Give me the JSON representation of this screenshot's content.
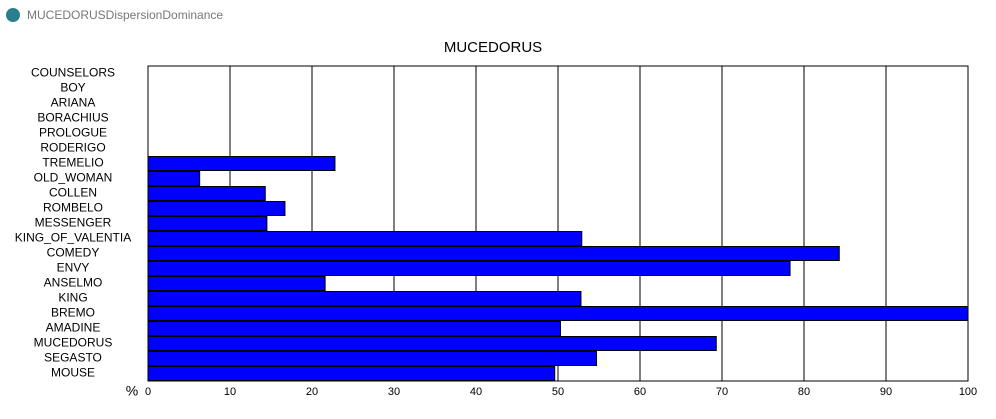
{
  "window": {
    "title": "MUCEDORUSDispersionDominance"
  },
  "chart_data": {
    "type": "barh",
    "title": "MUCEDORUS",
    "xlabel": "%",
    "categories": [
      "COUNSELORS",
      "BOY",
      "ARIANA",
      "BORACHIUS",
      "PROLOGUE",
      "RODERIGO",
      "TREMELIO",
      "OLD_WOMAN",
      "COLLEN",
      "ROMBELO",
      "MESSENGER",
      "KING_OF_VALENTIA",
      "COMEDY",
      "ENVY",
      "ANSELMO",
      "KING",
      "BREMO",
      "AMADINE",
      "MUCEDORUS",
      "SEGASTO",
      "MOUSE"
    ],
    "values": [
      0,
      0,
      0,
      0,
      0,
      0,
      22.8,
      6.3,
      14.3,
      16.7,
      14.5,
      52.9,
      84.3,
      78.3,
      21.6,
      52.8,
      100,
      50.3,
      69.3,
      54.7,
      49.6
    ],
    "color": "#0000ff",
    "xlim": [
      0,
      100
    ],
    "xticks": [
      0,
      10,
      20,
      30,
      40,
      50,
      60,
      70,
      80,
      90,
      100
    ],
    "grid": true
  }
}
